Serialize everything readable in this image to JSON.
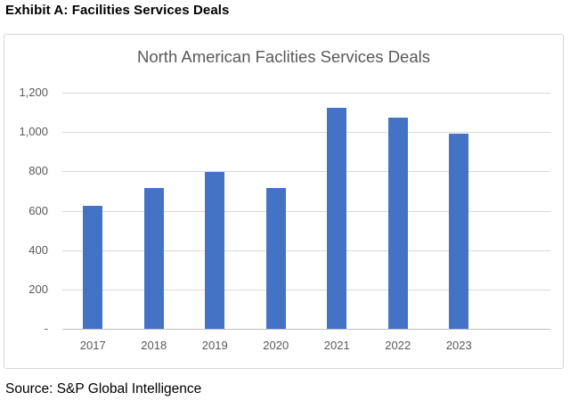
{
  "heading": "Exhibit A: Facilities Services Deals",
  "source": "Source: S&P Global Intelligence",
  "colors": {
    "bar": "#4472C4",
    "title_text": "#595959",
    "axis_text": "#595959",
    "gridline": "#D9D9D9",
    "axis_line": "#BFBFBF",
    "chart_border": "#D6D6D6"
  },
  "chart_data": {
    "type": "bar",
    "title": "North American Faclities Services Deals",
    "categories": [
      "2017",
      "2018",
      "2019",
      "2020",
      "2021",
      "2022",
      "2023"
    ],
    "values": [
      625,
      715,
      795,
      715,
      1125,
      1075,
      990
    ],
    "xlabel": "",
    "ylabel": "",
    "ylim": [
      0,
      1200
    ],
    "yticks": [
      0,
      200,
      400,
      600,
      800,
      1000,
      1200
    ],
    "ytick_labels": [
      "-",
      "200",
      "400",
      "600",
      "800",
      "1,000",
      "1,200"
    ],
    "grid": true,
    "legend": "none",
    "x_slot_count": 8
  }
}
